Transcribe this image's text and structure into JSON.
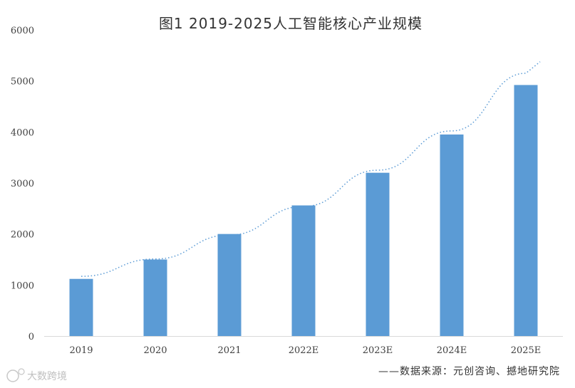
{
  "chart_data": {
    "type": "bar",
    "title": "图1 2019-2025人工智能核心产业规模",
    "categories": [
      "2019",
      "2020",
      "2021",
      "2022E",
      "2023E",
      "2024E",
      "2025E"
    ],
    "values": [
      1120,
      1500,
      2000,
      2560,
      3200,
      3950,
      4920
    ],
    "trend_values": [
      1170,
      1510,
      1980,
      2540,
      3250,
      4020,
      5150
    ],
    "ylim": [
      0,
      6000
    ],
    "yticks": [
      0,
      1000,
      2000,
      3000,
      4000,
      5000,
      6000
    ],
    "xlabel": "",
    "ylabel": "",
    "grid": false,
    "trendline": "dotted",
    "colors": {
      "bar": "#5b9bd5",
      "trend": "#5b9bd5",
      "axis": "#d9d9d9"
    }
  },
  "source_note": "——数据来源：元创咨询、撼地研究院",
  "watermark": "大数跨境"
}
